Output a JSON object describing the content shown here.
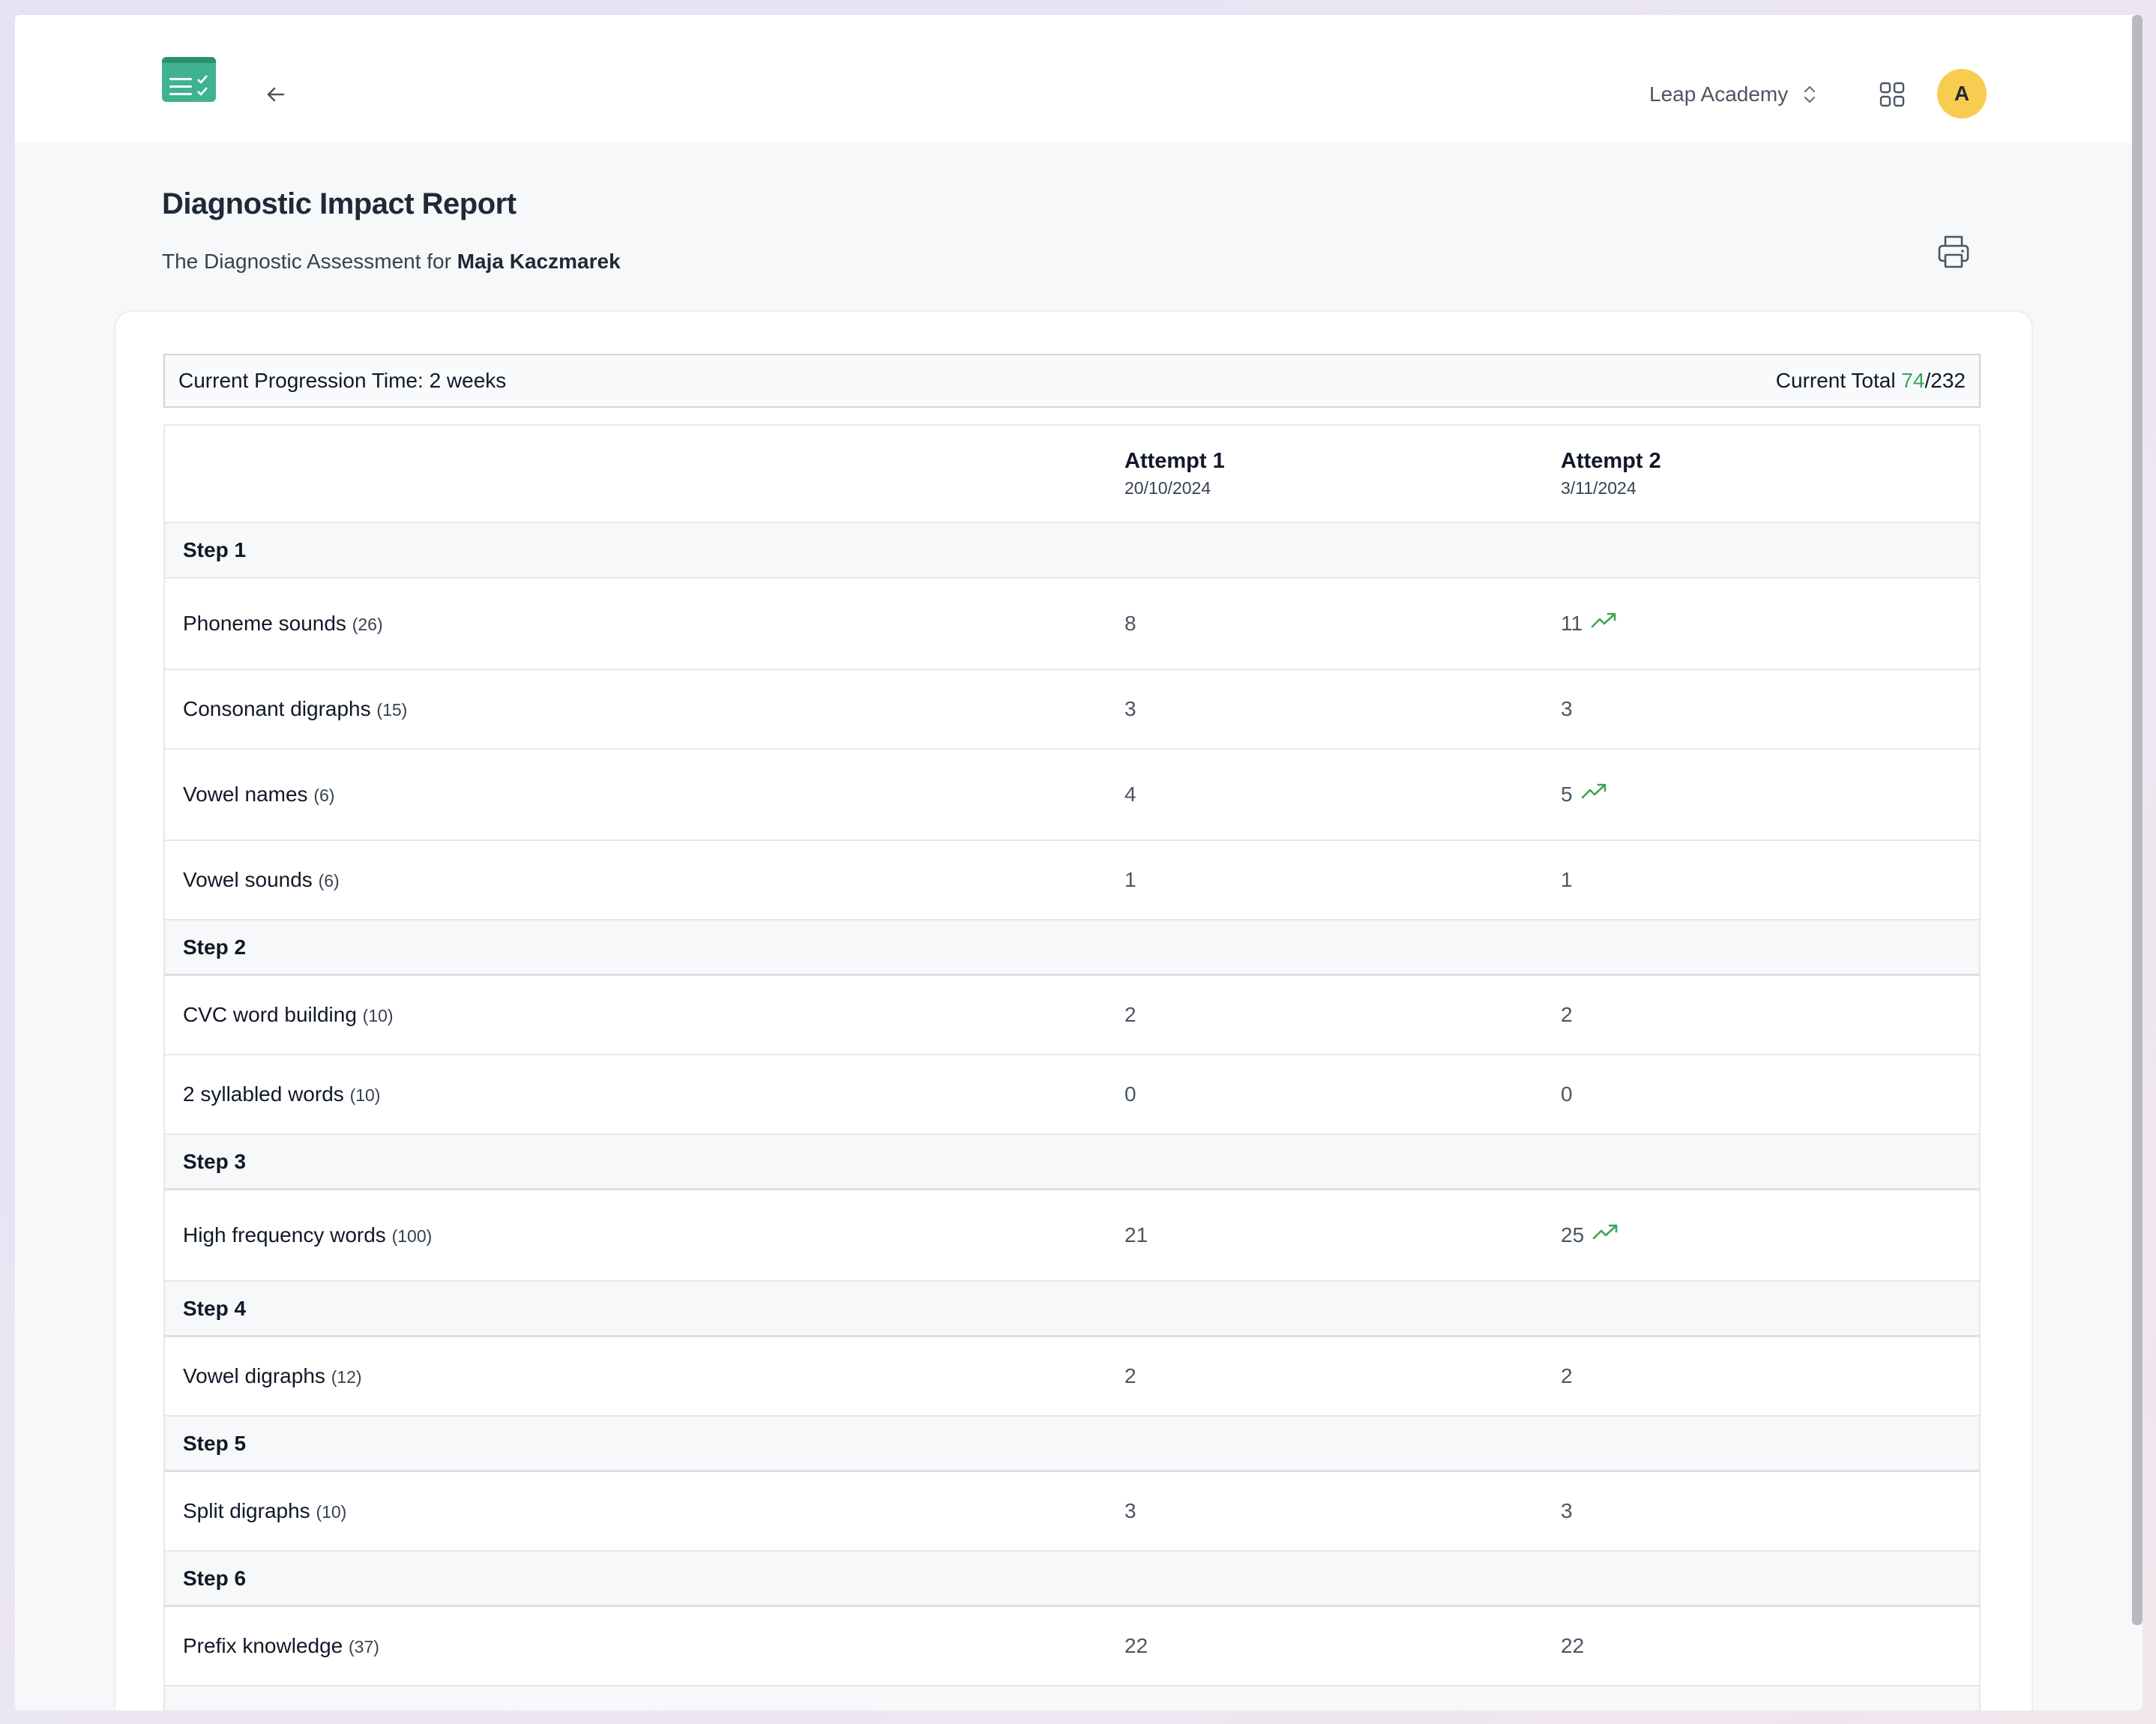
{
  "header": {
    "logo_icon": "checklist-logo-icon",
    "back_icon": "arrow-left-icon",
    "org_name": "Leap Academy",
    "org_icon": "chevron-up-down-icon",
    "apps_icon": "grid-icon",
    "avatar_initial": "A",
    "avatar_color": "#f7cc4f"
  },
  "page": {
    "title": "Diagnostic Impact Report",
    "subtitle_prefix": "The Diagnostic Assessment for ",
    "student_name": "Maja Kaczmarek",
    "print_icon": "printer-icon"
  },
  "summary": {
    "progression_label": "Current Progression Time: 2 weeks",
    "total_label": "Current Total ",
    "total_score": "74",
    "total_max": "/232",
    "score_color": "#3aa655"
  },
  "table": {
    "attempts": [
      {
        "title": "Attempt 1",
        "date": "20/10/2024"
      },
      {
        "title": "Attempt 2",
        "date": "3/11/2024"
      }
    ],
    "trend_icon": "trending-up-icon",
    "steps": [
      {
        "name": "Step 1",
        "items": [
          {
            "label": "Phoneme sounds",
            "max": "(26)",
            "a1": "8",
            "a2": "11",
            "improved": true
          },
          {
            "label": "Consonant digraphs",
            "max": "(15)",
            "a1": "3",
            "a2": "3",
            "improved": false
          },
          {
            "label": "Vowel names",
            "max": "(6)",
            "a1": "4",
            "a2": "5",
            "improved": true
          },
          {
            "label": "Vowel sounds",
            "max": "(6)",
            "a1": "1",
            "a2": "1",
            "improved": false
          }
        ]
      },
      {
        "name": "Step 2",
        "items": [
          {
            "label": "CVC word building",
            "max": "(10)",
            "a1": "2",
            "a2": "2",
            "improved": false
          },
          {
            "label": "2 syllabled words",
            "max": "(10)",
            "a1": "0",
            "a2": "0",
            "improved": false
          }
        ]
      },
      {
        "name": "Step 3",
        "items": [
          {
            "label": "High frequency words",
            "max": "(100)",
            "a1": "21",
            "a2": "25",
            "improved": true
          }
        ]
      },
      {
        "name": "Step 4",
        "items": [
          {
            "label": "Vowel digraphs",
            "max": "(12)",
            "a1": "2",
            "a2": "2",
            "improved": false
          }
        ]
      },
      {
        "name": "Step 5",
        "items": [
          {
            "label": "Split digraphs",
            "max": "(10)",
            "a1": "3",
            "a2": "3",
            "improved": false
          }
        ]
      },
      {
        "name": "Step 6",
        "items": [
          {
            "label": "Prefix knowledge",
            "max": "(37)",
            "a1": "22",
            "a2": "22",
            "improved": false
          }
        ]
      }
    ]
  }
}
